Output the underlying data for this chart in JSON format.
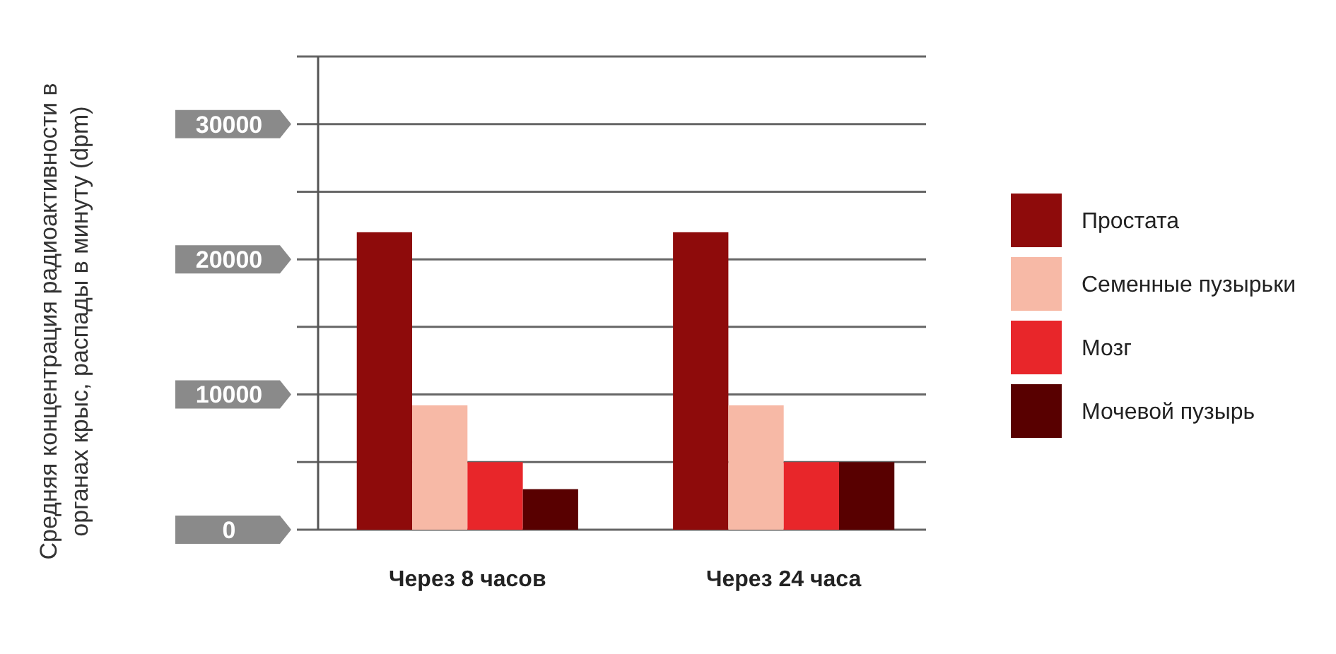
{
  "chart_data": {
    "type": "bar",
    "ylabel": "Средняя концентрация радиоактивности в органах крыс, распады в минуту (dpm)",
    "categories": [
      "Через 8 часов",
      "Через 24 часа"
    ],
    "series": [
      {
        "name": "Простата",
        "color": "#8e0b0b",
        "values": [
          22000,
          22000
        ]
      },
      {
        "name": "Семенные пузырьки",
        "color": "#f7b9a6",
        "values": [
          9200,
          9200
        ]
      },
      {
        "name": "Мозг",
        "color": "#e8262a",
        "values": [
          5000,
          5000
        ]
      },
      {
        "name": "Мочевой пузырь",
        "color": "#580000",
        "values": [
          3000,
          5000
        ]
      }
    ],
    "ylim": [
      0,
      35000
    ],
    "yticks": [
      0,
      {
        "value": 5000,
        "label": null
      },
      10000,
      {
        "value": 15000,
        "label": null
      },
      20000,
      {
        "value": 25000,
        "label": null
      },
      30000,
      {
        "value": 35000,
        "label": null
      }
    ],
    "grid": "y",
    "legend": "right"
  }
}
